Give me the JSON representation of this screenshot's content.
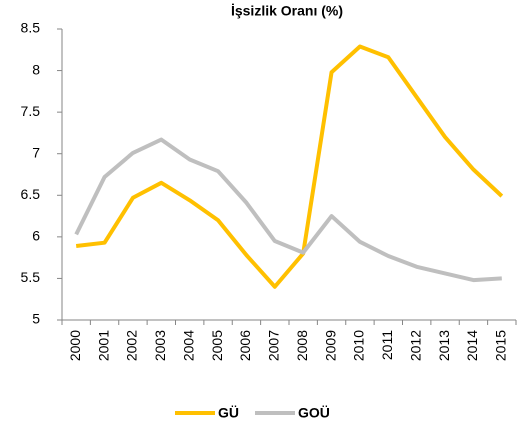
{
  "chart_data": {
    "type": "line",
    "title": "İşsizlik Oranı (%)",
    "categories": [
      "2000",
      "2001",
      "2002",
      "2003",
      "2004",
      "2005",
      "2006",
      "2007",
      "2008",
      "2009",
      "2010",
      "2011",
      "2012",
      "2013",
      "2014",
      "2015"
    ],
    "series": [
      {
        "name": "GÜ",
        "color": "#FFC000",
        "values": [
          5.89,
          5.93,
          6.47,
          6.65,
          6.44,
          6.2,
          5.78,
          5.4,
          5.8,
          7.98,
          8.29,
          8.16,
          7.68,
          7.2,
          6.81,
          6.49
        ]
      },
      {
        "name": "GOÜ",
        "color": "#BFBFBF",
        "values": [
          6.03,
          6.72,
          7.01,
          7.17,
          6.93,
          6.79,
          6.41,
          5.95,
          5.81,
          6.25,
          5.94,
          5.77,
          5.64,
          5.56,
          5.48,
          5.5
        ]
      }
    ],
    "ylim": [
      5,
      8.5
    ],
    "yticks": [
      5,
      5.5,
      6,
      6.5,
      7,
      7.5,
      8,
      8.5
    ],
    "grid": false,
    "legend": "bottom"
  }
}
